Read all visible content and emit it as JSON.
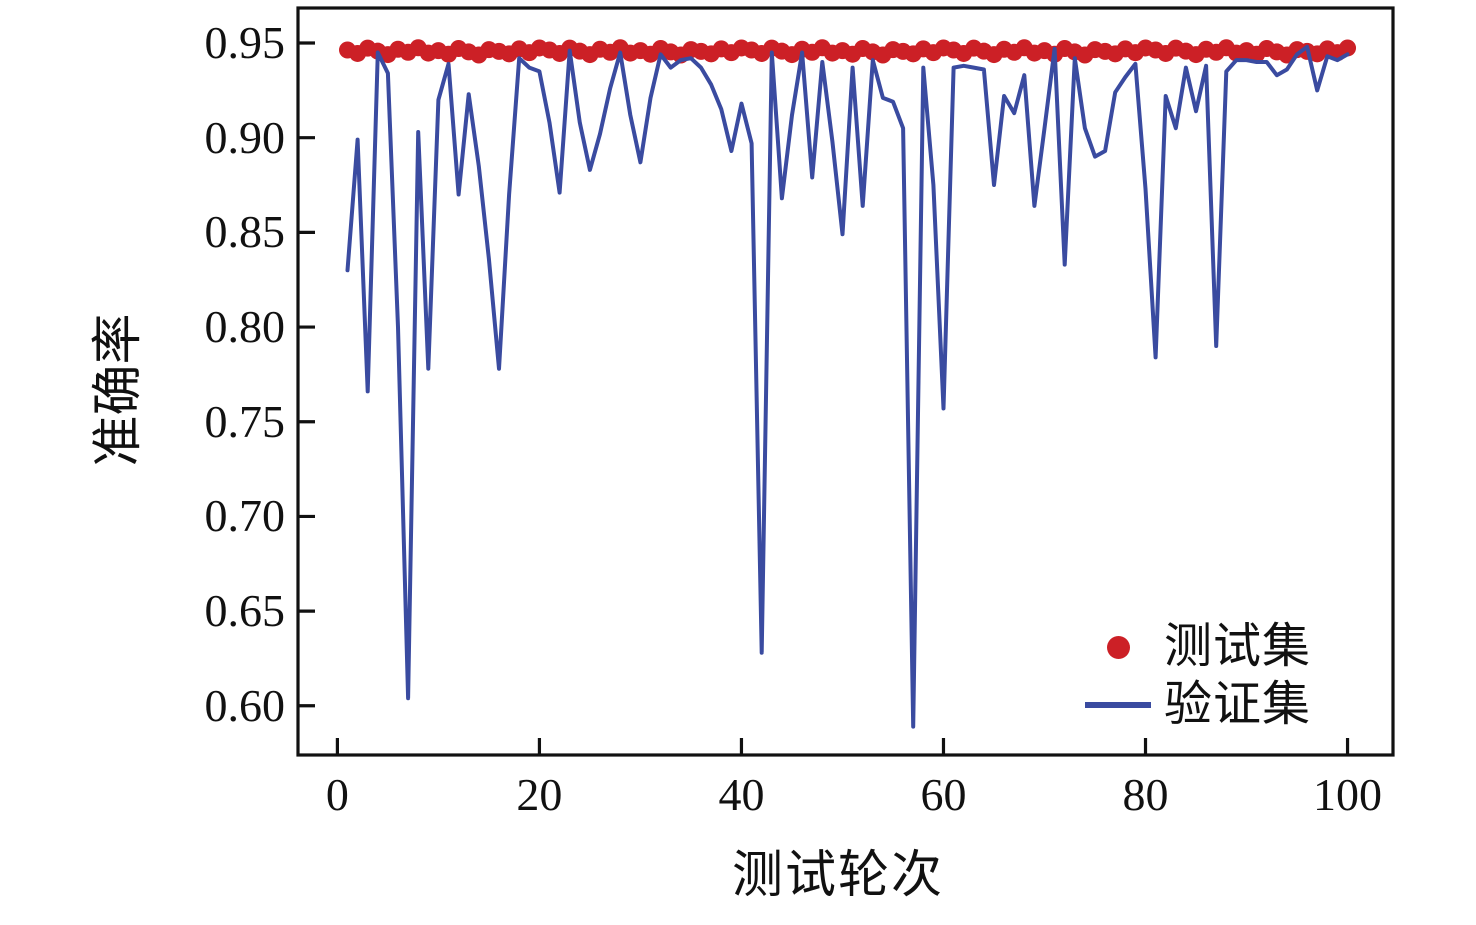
{
  "page": {
    "background": "#ffffff"
  },
  "chart_data": {
    "type": "line",
    "title": "",
    "xlabel": "测试轮次",
    "ylabel": "准确率",
    "grid": false,
    "legend_position": "lower right",
    "xlim": [
      -3.9,
      104.5
    ],
    "ylim": [
      0.574,
      0.9685
    ],
    "x_ticks": [
      {
        "v": 0,
        "label": "0"
      },
      {
        "v": 20,
        "label": "20"
      },
      {
        "v": 40,
        "label": "40"
      },
      {
        "v": 60,
        "label": "60"
      },
      {
        "v": 80,
        "label": "80"
      },
      {
        "v": 100,
        "label": "100"
      }
    ],
    "y_ticks": [
      {
        "v": 0.95,
        "label": "0.95"
      },
      {
        "v": 0.9,
        "label": "0.90"
      },
      {
        "v": 0.85,
        "label": "0.85"
      },
      {
        "v": 0.8,
        "label": "0.80"
      },
      {
        "v": 0.75,
        "label": "0.75"
      },
      {
        "v": 0.7,
        "label": "0.70"
      },
      {
        "v": 0.65,
        "label": "0.65"
      },
      {
        "v": 0.6,
        "label": "0.60"
      }
    ],
    "x": [
      1,
      2,
      3,
      4,
      5,
      6,
      7,
      8,
      9,
      10,
      11,
      12,
      13,
      14,
      15,
      16,
      17,
      18,
      19,
      20,
      21,
      22,
      23,
      24,
      25,
      26,
      27,
      28,
      29,
      30,
      31,
      32,
      33,
      34,
      35,
      36,
      37,
      38,
      39,
      40,
      41,
      42,
      43,
      44,
      45,
      46,
      47,
      48,
      49,
      50,
      51,
      52,
      53,
      54,
      55,
      56,
      57,
      58,
      59,
      60,
      61,
      62,
      63,
      64,
      65,
      66,
      67,
      68,
      69,
      70,
      71,
      72,
      73,
      74,
      75,
      76,
      77,
      78,
      79,
      80,
      81,
      82,
      83,
      84,
      85,
      86,
      87,
      88,
      89,
      90,
      91,
      92,
      93,
      94,
      95,
      96,
      97,
      98,
      99,
      100
    ],
    "series": [
      {
        "name": "测试集",
        "type": "scatter",
        "marker": "circle",
        "color": "#cc2026",
        "values": [
          0.9463,
          0.9445,
          0.9473,
          0.9457,
          0.9439,
          0.9467,
          0.9451,
          0.9475,
          0.9447,
          0.946,
          0.9441,
          0.9471,
          0.9453,
          0.9437,
          0.9465,
          0.9456,
          0.9443,
          0.9469,
          0.9449,
          0.9474,
          0.9463,
          0.9445,
          0.9473,
          0.9457,
          0.9439,
          0.9467,
          0.9451,
          0.9475,
          0.9447,
          0.946,
          0.9441,
          0.9471,
          0.9453,
          0.9437,
          0.9465,
          0.9456,
          0.9443,
          0.9469,
          0.9449,
          0.9474,
          0.9463,
          0.9445,
          0.9473,
          0.9457,
          0.9439,
          0.9467,
          0.9451,
          0.9475,
          0.9447,
          0.946,
          0.9441,
          0.9471,
          0.9453,
          0.9437,
          0.9465,
          0.9456,
          0.9443,
          0.9469,
          0.9449,
          0.9474,
          0.9463,
          0.9445,
          0.9473,
          0.9457,
          0.9439,
          0.9467,
          0.9451,
          0.9475,
          0.9447,
          0.946,
          0.9441,
          0.9471,
          0.9453,
          0.9437,
          0.9465,
          0.9456,
          0.9443,
          0.9469,
          0.9449,
          0.9474,
          0.9463,
          0.9445,
          0.9473,
          0.9457,
          0.9439,
          0.9467,
          0.9451,
          0.9475,
          0.9447,
          0.946,
          0.9441,
          0.9471,
          0.9453,
          0.9437,
          0.9465,
          0.9456,
          0.9443,
          0.9469,
          0.9449,
          0.9474
        ]
      },
      {
        "name": "验证集",
        "type": "line",
        "color": "#3a4ba0",
        "values": [
          0.83,
          0.899,
          0.766,
          0.945,
          0.934,
          0.8,
          0.604,
          0.903,
          0.778,
          0.92,
          0.939,
          0.87,
          0.923,
          0.885,
          0.836,
          0.778,
          0.87,
          0.942,
          0.937,
          0.935,
          0.908,
          0.871,
          0.946,
          0.908,
          0.883,
          0.902,
          0.926,
          0.945,
          0.912,
          0.887,
          0.921,
          0.944,
          0.937,
          0.941,
          0.942,
          0.937,
          0.928,
          0.915,
          0.893,
          0.918,
          0.897,
          0.628,
          0.945,
          0.868,
          0.912,
          0.945,
          0.879,
          0.94,
          0.898,
          0.849,
          0.937,
          0.864,
          0.941,
          0.921,
          0.919,
          0.905,
          0.589,
          0.937,
          0.875,
          0.757,
          0.937,
          0.938,
          0.937,
          0.936,
          0.875,
          0.922,
          0.913,
          0.933,
          0.864,
          0.905,
          0.947,
          0.833,
          0.942,
          0.905,
          0.89,
          0.893,
          0.924,
          0.932,
          0.939,
          0.873,
          0.784,
          0.922,
          0.905,
          0.937,
          0.914,
          0.938,
          0.79,
          0.935,
          0.941,
          0.941,
          0.94,
          0.94,
          0.933,
          0.936,
          0.944,
          0.948,
          0.925,
          0.943,
          0.941,
          0.944
        ]
      }
    ]
  }
}
